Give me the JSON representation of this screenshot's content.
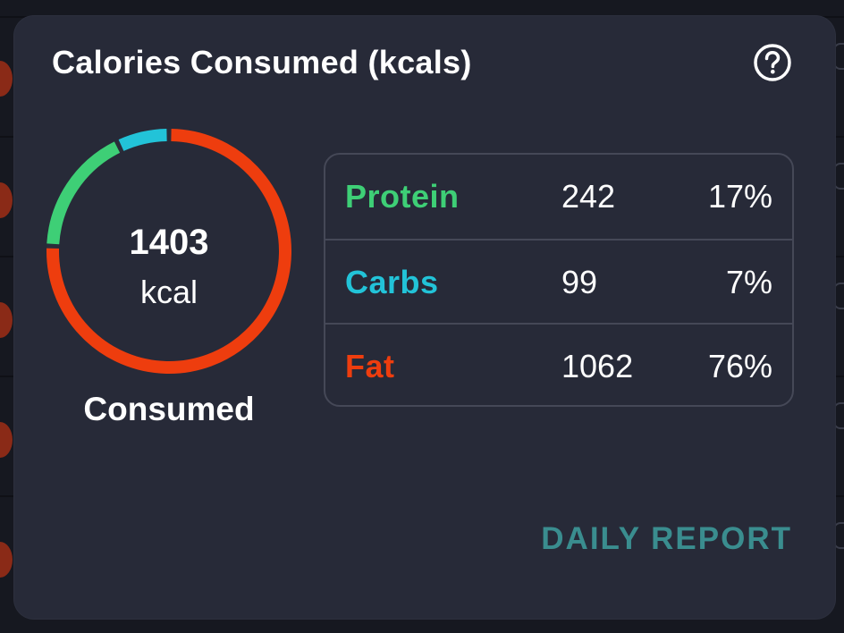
{
  "card": {
    "title": "Calories Consumed (kcals)",
    "help_icon": "question-circle-icon",
    "action_label": "DAILY REPORT",
    "action_color": "#3a8d8f"
  },
  "donut": {
    "total": "1403",
    "unit": "kcal",
    "caption": "Consumed",
    "track_color": "#2a2d3a"
  },
  "macros": [
    {
      "name": "Protein",
      "kcal": "242",
      "percent": "17%",
      "value": 242,
      "color": "#3ecf76"
    },
    {
      "name": "Carbs",
      "kcal": "99",
      "percent": "7%",
      "value": 99,
      "color": "#22c3d8"
    },
    {
      "name": "Fat",
      "kcal": "1062",
      "percent": "76%",
      "value": 1062,
      "color": "#ee3d0e"
    }
  ]
}
